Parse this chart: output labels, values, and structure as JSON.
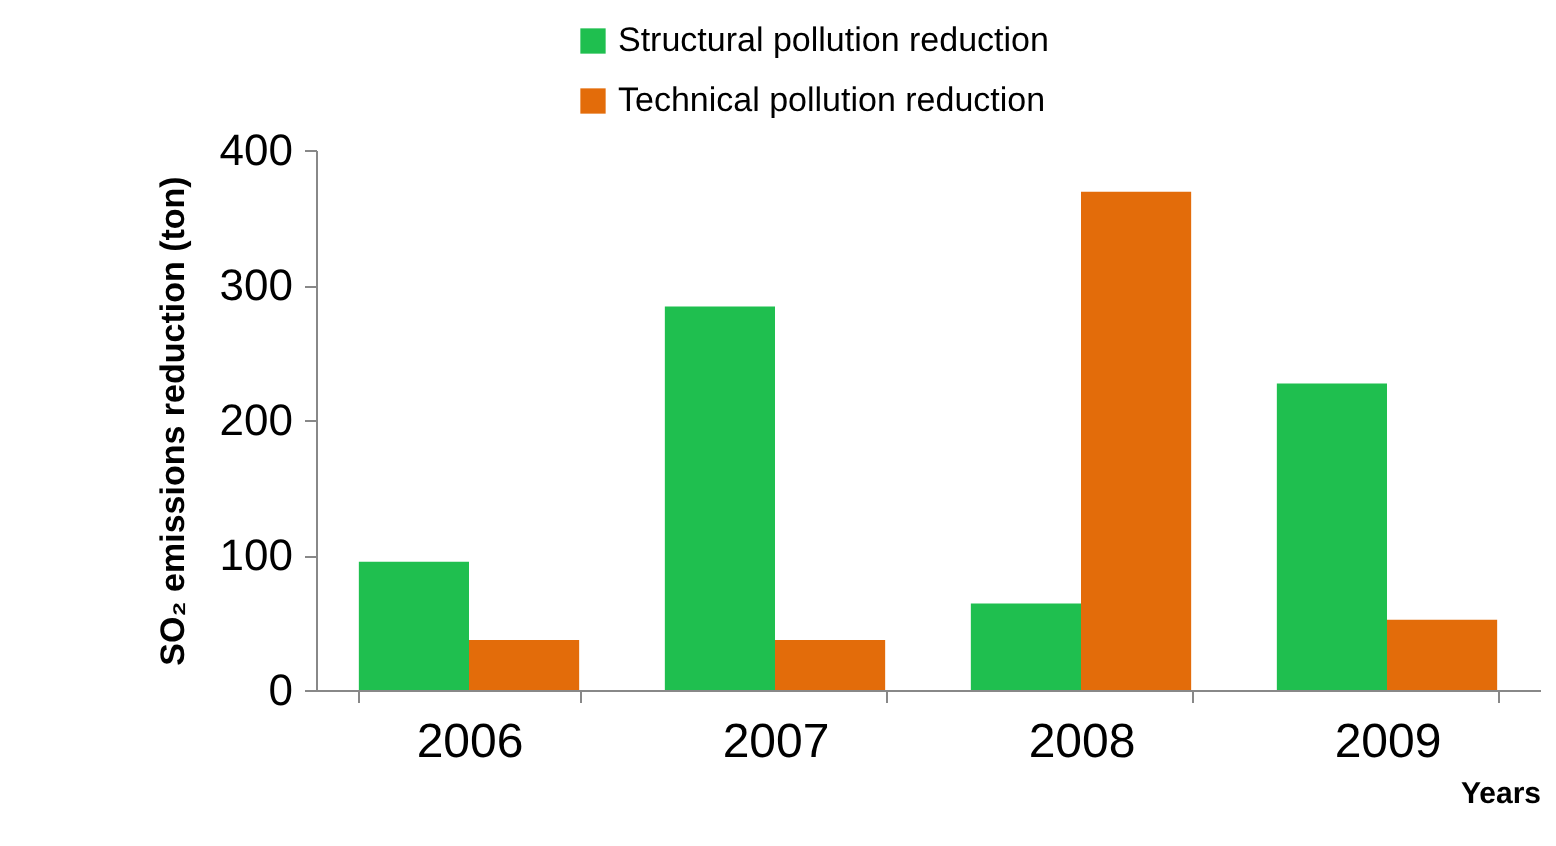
{
  "chart_data": {
    "type": "bar",
    "xlabel": "Years",
    "ylabel": "SO₂ emissions reduction (ton)",
    "categories": [
      "2006",
      "2007",
      "2008",
      "2009"
    ],
    "series": [
      {
        "name": "Structural pollution reduction",
        "color": "#1fbf4f",
        "values": [
          95,
          284,
          64,
          227
        ]
      },
      {
        "name": "Technical pollution reduction",
        "color": "#e36c0a",
        "values": [
          37,
          37,
          369,
          52
        ]
      }
    ],
    "ylim": [
      0,
      400
    ],
    "yticks": [
      0,
      100,
      200,
      300,
      400
    ],
    "grid": false,
    "legend": "top"
  }
}
